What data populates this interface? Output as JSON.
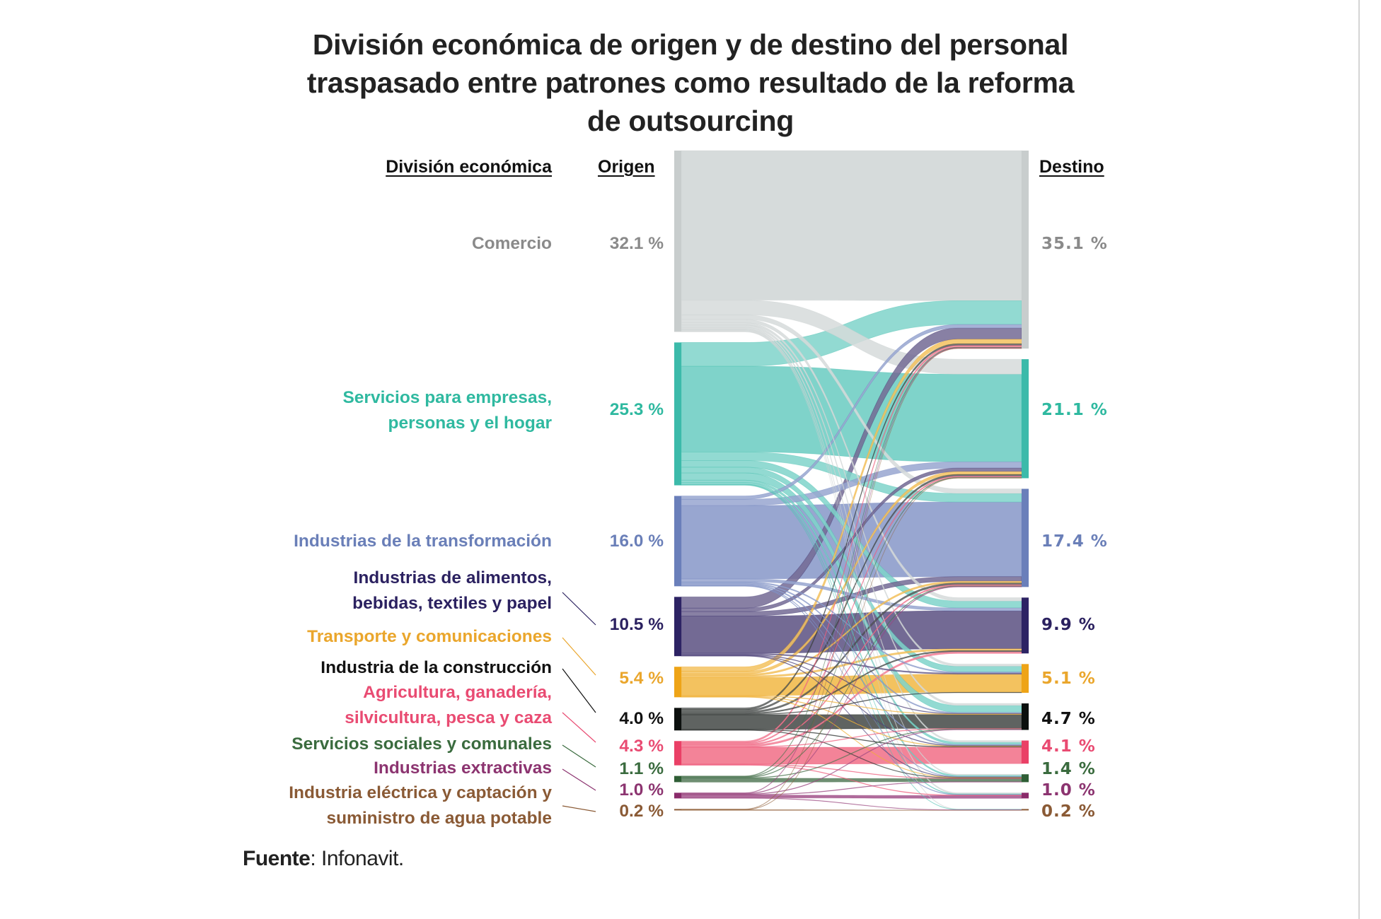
{
  "title": {
    "lines": [
      "División económica de origen y de destino del personal",
      "traspasado entre patrones como resultado de la reforma",
      "de outsourcing"
    ]
  },
  "headers": {
    "division": "División económica",
    "origin": "Origen",
    "destination": "Destino"
  },
  "footer": {
    "source_label": "Fuente",
    "source_value": ": Infonavit."
  },
  "chart_data": {
    "type": "sankey",
    "title": "División económica de origen y de destino del personal traspasado entre patrones como resultado de la reforma de outsourcing",
    "units": "%",
    "nodes": [
      {
        "id": "comercio",
        "label": "Comercio",
        "origin_pct": 32.1,
        "destination_pct": 35.1,
        "color": "#8a8a8a",
        "band_color": "#d6dbdb",
        "bar_color": "#c8cdcd",
        "origin_label": "32.1 %",
        "destination_label": "35.1 %"
      },
      {
        "id": "servicios",
        "label": "Servicios para empresas, personas y el hogar",
        "label_lines": [
          "Servicios para empresas,",
          "personas y el hogar"
        ],
        "origin_pct": 25.3,
        "destination_pct": 21.1,
        "color": "#2fb9a0",
        "band_color": "#7fd3ca",
        "bar_color": "#3cbaaa",
        "origin_label": "25.3 %",
        "destination_label": "21.1 %"
      },
      {
        "id": "transformacion",
        "label": "Industrias de la transformación",
        "origin_pct": 16.0,
        "destination_pct": 17.4,
        "color": "#6a7fb8",
        "band_color": "#98a6d0",
        "bar_color": "#6a7fba",
        "origin_label": "16.0 %",
        "destination_label": "17.4 %"
      },
      {
        "id": "alimentos",
        "label": "Industrias de alimentos, bebidas, textiles y papel",
        "label_lines": [
          "Industrias de alimentos,",
          "bebidas, textiles y papel"
        ],
        "origin_pct": 10.5,
        "destination_pct": 9.9,
        "color": "#2b2160",
        "band_color": "#736a94",
        "bar_color": "#2d2364",
        "origin_label": "10.5 %",
        "destination_label": "9.9 %"
      },
      {
        "id": "transporte",
        "label": "Transporte y comunicaciones",
        "origin_pct": 5.4,
        "destination_pct": 5.1,
        "color": "#eaa62c",
        "band_color": "#f3c25f",
        "bar_color": "#eea417",
        "origin_label": "5.4 %",
        "destination_label": "5.1 %"
      },
      {
        "id": "construccion",
        "label": "Industria de la construcción",
        "origin_pct": 4.0,
        "destination_pct": 4.7,
        "color": "#111111",
        "band_color": "#5f6361",
        "bar_color": "#0c100e",
        "origin_label": "4.0 %",
        "destination_label": "4.7 %"
      },
      {
        "id": "agricultura",
        "label": "Agricultura, ganadería, silvicultura, pesca y caza",
        "label_lines": [
          "Agricultura, ganadería,",
          "silvicultura, pesca y caza"
        ],
        "origin_pct": 4.3,
        "destination_pct": 4.1,
        "color": "#e94b72",
        "band_color": "#f38398",
        "bar_color": "#ea4066",
        "origin_label": "4.3 %",
        "destination_label": "4.1 %"
      },
      {
        "id": "sociales",
        "label": "Servicios sociales y comunales",
        "origin_pct": 1.1,
        "destination_pct": 1.4,
        "color": "#3a6b3e",
        "band_color": "#6f8f73",
        "bar_color": "#2f5e35",
        "origin_label": "1.1 %",
        "destination_label": "1.4 %"
      },
      {
        "id": "extractivas",
        "label": "Industrias extractivas",
        "origin_pct": 1.0,
        "destination_pct": 1.0,
        "color": "#8c3470",
        "band_color": "#b06c9c",
        "bar_color": "#8a2b6b",
        "origin_label": "1.0 %",
        "destination_label": "1.0 %"
      },
      {
        "id": "electrica",
        "label": "Industria eléctrica y captación y suministro de agua potable",
        "label_lines": [
          "Industria eléctrica y captación y",
          "suministro de agua potable"
        ],
        "origin_pct": 0.2,
        "destination_pct": 0.2,
        "color": "#8a5a35",
        "band_color": "#a57a55",
        "bar_color": "#8a5a35",
        "origin_label": "0.2 %",
        "destination_label": "0.2 %"
      }
    ],
    "flows_approx": [
      {
        "from": "comercio",
        "to": "comercio",
        "value": 26.5
      },
      {
        "from": "comercio",
        "to": "servicios",
        "value": 2.6
      },
      {
        "from": "comercio",
        "to": "transformacion",
        "value": 0.8
      },
      {
        "from": "comercio",
        "to": "alimentos",
        "value": 0.6
      },
      {
        "from": "comercio",
        "to": "transporte",
        "value": 0.4
      },
      {
        "from": "comercio",
        "to": "construccion",
        "value": 0.4
      },
      {
        "from": "comercio",
        "to": "agricultura",
        "value": 0.3
      },
      {
        "from": "comercio",
        "to": "sociales",
        "value": 0.2
      },
      {
        "from": "comercio",
        "to": "extractivas",
        "value": 0.2
      },
      {
        "from": "comercio",
        "to": "electrica",
        "value": 0.1
      },
      {
        "from": "servicios",
        "to": "comercio",
        "value": 4.2
      },
      {
        "from": "servicios",
        "to": "servicios",
        "value": 15.2
      },
      {
        "from": "servicios",
        "to": "transformacion",
        "value": 1.5
      },
      {
        "from": "servicios",
        "to": "alimentos",
        "value": 1.2
      },
      {
        "from": "servicios",
        "to": "transporte",
        "value": 1.0
      },
      {
        "from": "servicios",
        "to": "construccion",
        "value": 1.3
      },
      {
        "from": "servicios",
        "to": "agricultura",
        "value": 0.4
      },
      {
        "from": "servicios",
        "to": "sociales",
        "value": 0.3
      },
      {
        "from": "servicios",
        "to": "extractivas",
        "value": 0.1
      },
      {
        "from": "servicios",
        "to": "electrica",
        "value": 0.1
      },
      {
        "from": "transformacion",
        "to": "comercio",
        "value": 0.6
      },
      {
        "from": "transformacion",
        "to": "servicios",
        "value": 1.1
      },
      {
        "from": "transformacion",
        "to": "transformacion",
        "value": 13.0
      },
      {
        "from": "transformacion",
        "to": "alimentos",
        "value": 0.5
      },
      {
        "from": "transformacion",
        "to": "transporte",
        "value": 0.2
      },
      {
        "from": "transformacion",
        "to": "construccion",
        "value": 0.2
      },
      {
        "from": "transformacion",
        "to": "agricultura",
        "value": 0.2
      },
      {
        "from": "transformacion",
        "to": "sociales",
        "value": 0.1
      },
      {
        "from": "transformacion",
        "to": "extractivas",
        "value": 0.1
      },
      {
        "from": "alimentos",
        "to": "comercio",
        "value": 2.0
      },
      {
        "from": "alimentos",
        "to": "servicios",
        "value": 0.6
      },
      {
        "from": "alimentos",
        "to": "transformacion",
        "value": 0.8
      },
      {
        "from": "alimentos",
        "to": "alimentos",
        "value": 6.6
      },
      {
        "from": "alimentos",
        "to": "transporte",
        "value": 0.2
      },
      {
        "from": "alimentos",
        "to": "construccion",
        "value": 0.1
      },
      {
        "from": "alimentos",
        "to": "agricultura",
        "value": 0.1
      },
      {
        "from": "alimentos",
        "to": "sociales",
        "value": 0.1
      },
      {
        "from": "transporte",
        "to": "comercio",
        "value": 0.8
      },
      {
        "from": "transporte",
        "to": "servicios",
        "value": 0.5
      },
      {
        "from": "transporte",
        "to": "transformacion",
        "value": 0.3
      },
      {
        "from": "transporte",
        "to": "alimentos",
        "value": 0.3
      },
      {
        "from": "transporte",
        "to": "transporte",
        "value": 3.2
      },
      {
        "from": "transporte",
        "to": "construccion",
        "value": 0.1
      },
      {
        "from": "transporte",
        "to": "agricultura",
        "value": 0.1
      },
      {
        "from": "transporte",
        "to": "sociales",
        "value": 0.1
      },
      {
        "from": "construccion",
        "to": "comercio",
        "value": 0.3
      },
      {
        "from": "construccion",
        "to": "servicios",
        "value": 0.3
      },
      {
        "from": "construccion",
        "to": "transformacion",
        "value": 0.3
      },
      {
        "from": "construccion",
        "to": "alimentos",
        "value": 0.2
      },
      {
        "from": "construccion",
        "to": "transporte",
        "value": 0.1
      },
      {
        "from": "construccion",
        "to": "construccion",
        "value": 2.6
      },
      {
        "from": "construccion",
        "to": "agricultura",
        "value": 0.1
      },
      {
        "from": "construccion",
        "to": "sociales",
        "value": 0.1
      },
      {
        "from": "agricultura",
        "to": "comercio",
        "value": 0.3
      },
      {
        "from": "agricultura",
        "to": "servicios",
        "value": 0.2
      },
      {
        "from": "agricultura",
        "to": "transformacion",
        "value": 0.2
      },
      {
        "from": "agricultura",
        "to": "alimentos",
        "value": 0.3
      },
      {
        "from": "agricultura",
        "to": "construccion",
        "value": 0.1
      },
      {
        "from": "agricultura",
        "to": "agricultura",
        "value": 3.0
      },
      {
        "from": "agricultura",
        "to": "sociales",
        "value": 0.1
      },
      {
        "from": "agricultura",
        "to": "extractivas",
        "value": 0.1
      },
      {
        "from": "sociales",
        "to": "comercio",
        "value": 0.1
      },
      {
        "from": "sociales",
        "to": "servicios",
        "value": 0.1
      },
      {
        "from": "sociales",
        "to": "transformacion",
        "value": 0.1
      },
      {
        "from": "sociales",
        "to": "construccion",
        "value": 0.1
      },
      {
        "from": "sociales",
        "to": "sociales",
        "value": 0.7
      },
      {
        "from": "extractivas",
        "to": "comercio",
        "value": 0.1
      },
      {
        "from": "extractivas",
        "to": "transformacion",
        "value": 0.1
      },
      {
        "from": "extractivas",
        "to": "construccion",
        "value": 0.1
      },
      {
        "from": "extractivas",
        "to": "extractivas",
        "value": 0.5
      },
      {
        "from": "extractivas",
        "to": "electrica",
        "value": 0.1
      },
      {
        "from": "extractivas",
        "to": "sociales",
        "value": 0.1
      },
      {
        "from": "electrica",
        "to": "servicios",
        "value": 0.05
      },
      {
        "from": "electrica",
        "to": "comercio",
        "value": 0.05
      },
      {
        "from": "electrica",
        "to": "electrica",
        "value": 0.1
      }
    ]
  }
}
